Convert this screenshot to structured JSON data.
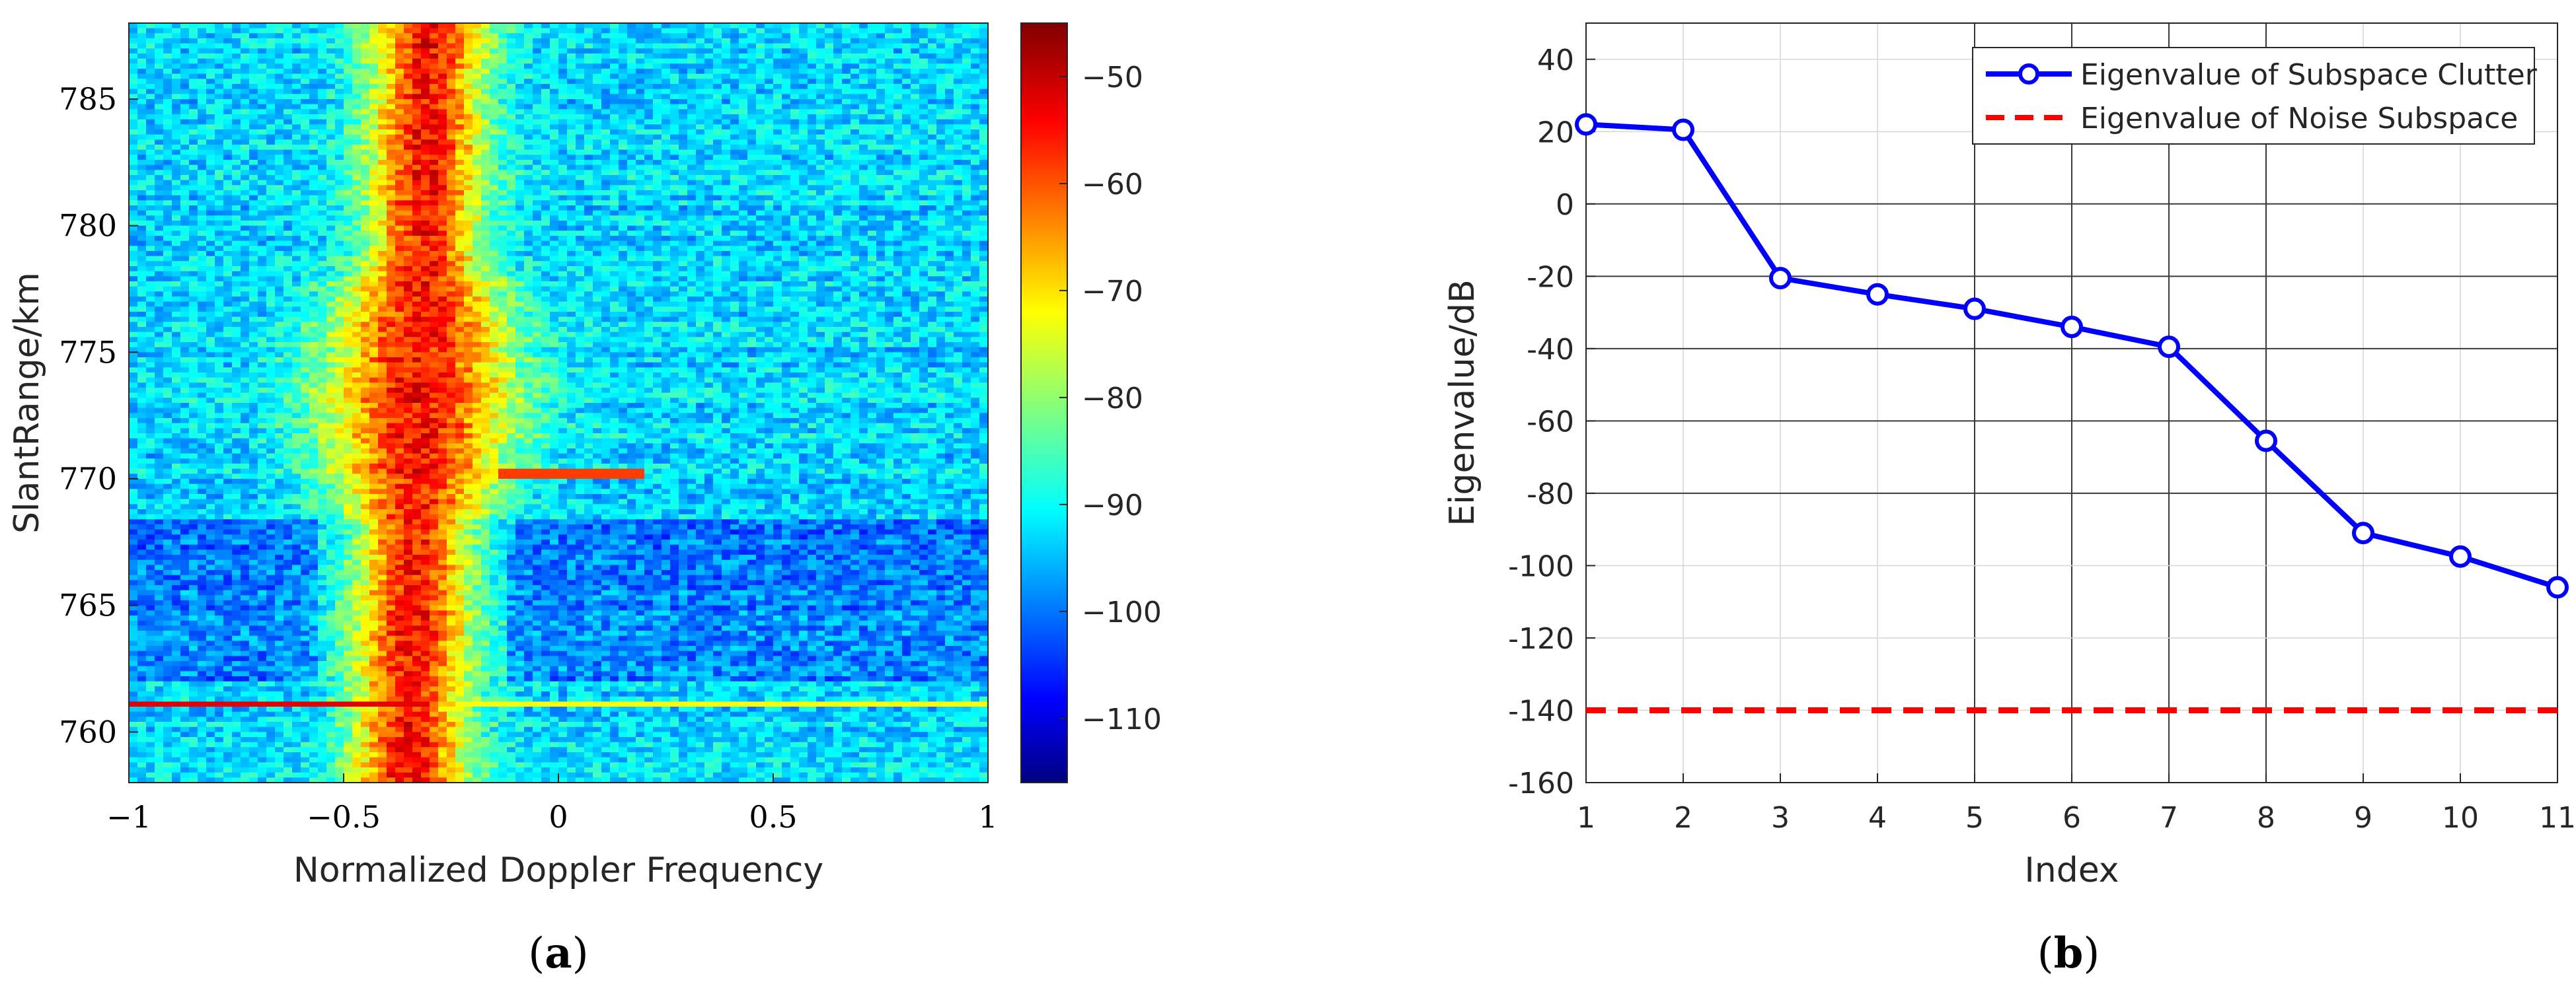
{
  "chart_data": [
    {
      "type": "heatmap",
      "panel_label": "(a)",
      "panel_letter": "a",
      "xlabel": "Normalized Doppler Frequency",
      "ylabel": "SlantRange/km",
      "xlim": [
        -1,
        1
      ],
      "ylim": [
        758,
        788
      ],
      "xticks": [
        -1,
        -0.5,
        0,
        0.5,
        1
      ],
      "xtick_labels": [
        "−1",
        "−0.5",
        "0",
        "0.5",
        "1"
      ],
      "yticks": [
        760,
        765,
        770,
        775,
        780,
        785
      ],
      "ytick_labels": [
        "760",
        "765",
        "770",
        "775",
        "780",
        "785"
      ],
      "colorbar": {
        "range": [
          -116,
          -45
        ],
        "ticks": [
          -50,
          -60,
          -70,
          -80,
          -90,
          -100,
          -110
        ],
        "tick_labels": [
          "−50",
          "−60",
          "−70",
          "−80",
          "−90",
          "−100",
          "−110"
        ],
        "colormap": "jet"
      },
      "clutter_ridge": {
        "description_values_db": {
          "background": -92,
          "ridge_peak": -55,
          "ridge_edge": -72
        },
        "center_top": -0.3,
        "center_bottom": -0.35,
        "strong_line_range_km": 761.1,
        "bright_ridge_range_km": 770.2
      }
    },
    {
      "type": "line",
      "panel_label": "(b)",
      "panel_letter": "b",
      "xlabel": "Index",
      "ylabel": "Eigenvalue/dB",
      "xlim": [
        1,
        11
      ],
      "ylim": [
        -160,
        50
      ],
      "xticks": [
        1,
        2,
        3,
        4,
        5,
        6,
        7,
        8,
        9,
        10,
        11
      ],
      "xtick_labels": [
        "1",
        "2",
        "3",
        "4",
        "5",
        "6",
        "7",
        "8",
        "9",
        "10",
        "11"
      ],
      "yticks": [
        40,
        20,
        0,
        -20,
        -40,
        -60,
        -80,
        -100,
        -120,
        -140,
        -160
      ],
      "ytick_labels": [
        "40",
        "20",
        "0",
        "-20",
        "-40",
        "-60",
        "-80",
        "-100",
        "-120",
        "-140",
        "-160"
      ],
      "grid": true,
      "legend_position": "top-right",
      "series": [
        {
          "name": "Eigenvalue of Subspace Clutter",
          "color": "#0000ff",
          "style": "solid-circle-markers",
          "x": [
            1,
            2,
            3,
            4,
            5,
            6,
            7,
            8,
            9,
            10,
            11
          ],
          "values": [
            22,
            20.5,
            -20.5,
            -25,
            -29,
            -34,
            -39.5,
            -65.5,
            -91,
            -97.5,
            -106
          ]
        },
        {
          "name": "Eigenvalue of Noise Subspace",
          "color": "#ff0000",
          "style": "dashed",
          "x": [
            1,
            11
          ],
          "values": [
            -140,
            -140
          ]
        }
      ]
    }
  ]
}
